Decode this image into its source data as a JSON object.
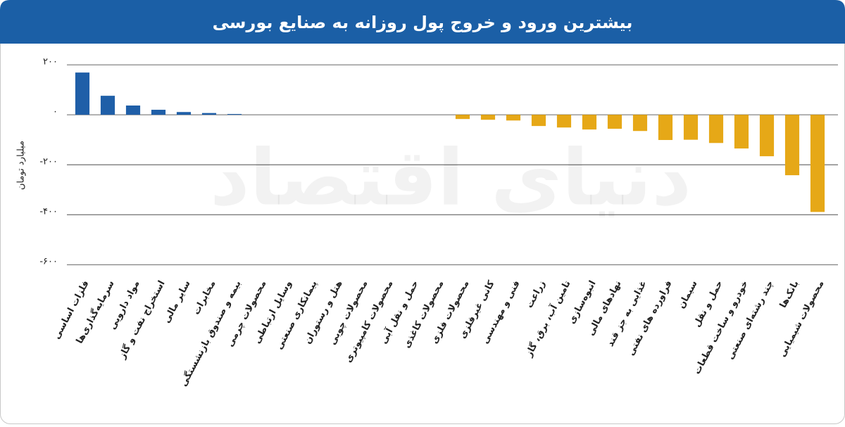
{
  "chart_data": {
    "type": "bar",
    "title": "بیشترین ورود و خروج پول روزانه به صنایع بورسی",
    "y_label": "میلیارد تومان",
    "watermark": "دنیای اقتصاد",
    "categories": [
      "فلزات اساسی",
      "سرمایه‌گذاری‌ها",
      "مواد دارویی",
      "استخراج نفت و گاز",
      "سایر مالی",
      "مخابرات",
      "بیمه و صندوق بازنشستگی",
      "محصولات چرمی",
      "وسایل ارتباطی",
      "پیمانکاری صنعتی",
      "هتل و رستوران",
      "محصولات چوبی",
      "محصولات کامپیوتری",
      "حمل و نقل آبی",
      "محصولات کاغذی",
      "محصولات فلزی",
      "کانی غیرفلزی",
      "فنی و مهندسی",
      "زراعت",
      "تامین آب، برق، گاز",
      "انبوه‌سازی",
      "نهادهای مالی",
      "غذایی به جز قند",
      "فراورده های نفتی",
      "سیمان",
      "حمل و نقل",
      "خودرو و ساخت قطعات",
      "چند رشته‌ای صنعتی",
      "بانک‌ها",
      "محصولات شیمیایی"
    ],
    "values": [
      169,
      76,
      37,
      20,
      11,
      7,
      3,
      0,
      0,
      0,
      0,
      0,
      0,
      0,
      0,
      -17,
      -20,
      -23,
      -45,
      -51,
      -59,
      -56,
      -65,
      -101,
      -100,
      -113,
      -135,
      -166,
      -242,
      -389
    ],
    "positive_color": "#1f5fa8",
    "negative_color": "#e6a817",
    "ylim": [
      -650,
      220
    ],
    "yticks": [
      {
        "value": 200,
        "label": "۲۰۰"
      },
      {
        "value": 0,
        "label": "۰"
      },
      {
        "value": -200,
        "label": "-۲۰۰"
      },
      {
        "value": -400,
        "label": "-۴۰۰"
      },
      {
        "value": -600,
        "label": "-۶۰۰"
      }
    ],
    "grid": true
  }
}
